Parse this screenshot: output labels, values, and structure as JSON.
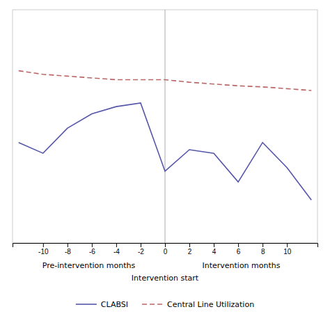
{
  "chart_data": {
    "type": "line",
    "x": [
      -12,
      -10,
      -8,
      -6,
      -4,
      -2,
      0,
      2,
      4,
      6,
      8,
      10,
      12
    ],
    "series": [
      {
        "name": "CLABSI",
        "color": "#5555aa",
        "line_style": "solid",
        "values": [
          0.38,
          0.35,
          0.42,
          0.46,
          0.48,
          0.49,
          0.3,
          0.36,
          0.35,
          0.27,
          0.38,
          0.31,
          0.22
        ]
      },
      {
        "name": "Central Line Utilization",
        "color": "#bb6666",
        "line_style": "dashed",
        "values": [
          0.58,
          0.57,
          0.565,
          0.56,
          0.555,
          0.555,
          0.555,
          0.548,
          0.543,
          0.538,
          0.535,
          0.53,
          0.525
        ]
      }
    ],
    "vline": 0,
    "annotations": [
      "Pre-intervention months",
      "Intervention start",
      "Intervention months"
    ],
    "xlim": [
      -12.5,
      12.5
    ],
    "xticks": [
      -10,
      -8,
      -6,
      -4,
      -2,
      0,
      2,
      4,
      6,
      8,
      10
    ],
    "ylim": [
      0.1,
      0.75
    ],
    "tick_labels": "x",
    "legend": "bottom"
  }
}
